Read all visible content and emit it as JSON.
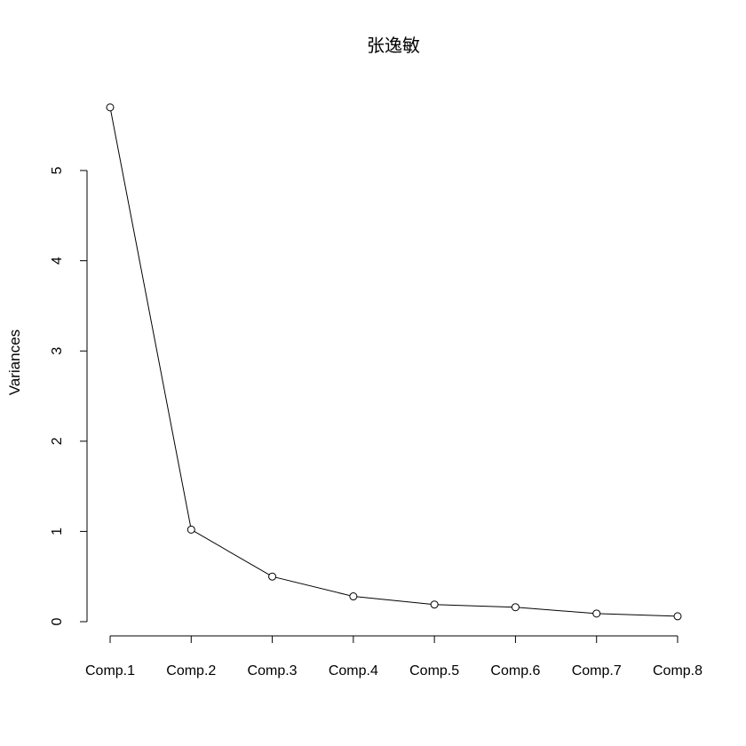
{
  "chart_data": {
    "type": "line",
    "title": "张逸敏",
    "xlabel": "",
    "ylabel": "Variances",
    "categories": [
      "Comp.1",
      "Comp.2",
      "Comp.3",
      "Comp.4",
      "Comp.5",
      "Comp.6",
      "Comp.7",
      "Comp.8"
    ],
    "values": [
      5.7,
      1.02,
      0.5,
      0.28,
      0.19,
      0.16,
      0.09,
      0.06
    ],
    "yticks": [
      "0",
      "1",
      "2",
      "3",
      "4",
      "5"
    ],
    "ylim": [
      0,
      5.7
    ],
    "grid": false,
    "legend": "none",
    "marker": "open-circle",
    "line_color": "#000000"
  }
}
